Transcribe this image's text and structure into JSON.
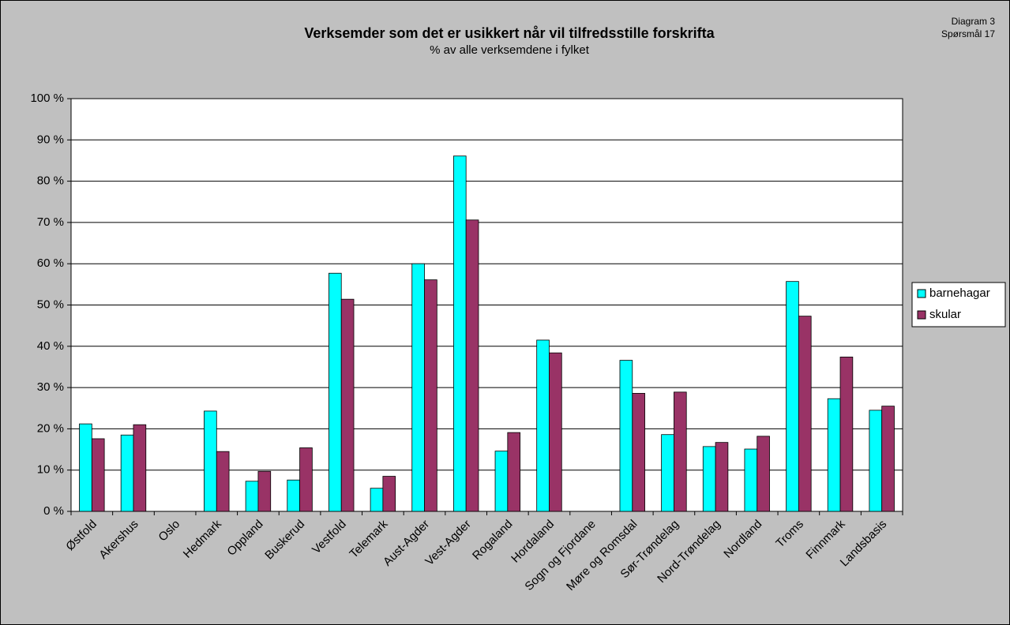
{
  "chart_data": {
    "type": "bar",
    "title": "Verksemder som det er usikkert når vil tilfredsstille forskrifta",
    "subtitle": "% av alle verksemdene i fylket",
    "annotations": [
      "Diagram 3",
      "Spørsmål 17"
    ],
    "categories": [
      "Østfold",
      "Akershus",
      "Oslo",
      "Hedmark",
      "Oppland",
      "Buskerud",
      "Vestfold",
      "Telemark",
      "Aust-Agder",
      "Vest-Agder",
      "Rogaland",
      "Hordaland",
      "Sogn og Fjordane",
      "Møre og Romsdal",
      "Sør-Trøndelag",
      "Nord-Trøndelag",
      "Nordland",
      "Troms",
      "Finnmark",
      "Landsbasis"
    ],
    "series": [
      {
        "name": "barnehagar",
        "color": "#00ffff",
        "values": [
          21.2,
          18.5,
          null,
          24.3,
          7.3,
          7.6,
          57.7,
          5.6,
          60.0,
          86.1,
          14.6,
          41.5,
          null,
          36.6,
          18.6,
          15.7,
          15.1,
          55.7,
          27.3,
          24.5
        ]
      },
      {
        "name": "skular",
        "color": "#993366",
        "values": [
          17.6,
          21.0,
          null,
          14.5,
          9.7,
          15.4,
          51.4,
          8.5,
          56.1,
          70.6,
          19.1,
          38.4,
          null,
          28.6,
          28.9,
          16.7,
          18.2,
          47.3,
          37.4,
          25.5
        ]
      }
    ],
    "ylim": [
      0,
      100
    ],
    "yticks": [
      {
        "value": 0,
        "label": "0 %"
      },
      {
        "value": 10,
        "label": "10 %"
      },
      {
        "value": 20,
        "label": "20 %"
      },
      {
        "value": 30,
        "label": "30 %"
      },
      {
        "value": 40,
        "label": "40 %"
      },
      {
        "value": 50,
        "label": "50 %"
      },
      {
        "value": 60,
        "label": "60 %"
      },
      {
        "value": 70,
        "label": "70 %"
      },
      {
        "value": 80,
        "label": "80 %"
      },
      {
        "value": 90,
        "label": "90 %"
      },
      {
        "value": 100,
        "label": "100 %"
      }
    ],
    "grid": true,
    "legend": "right"
  }
}
